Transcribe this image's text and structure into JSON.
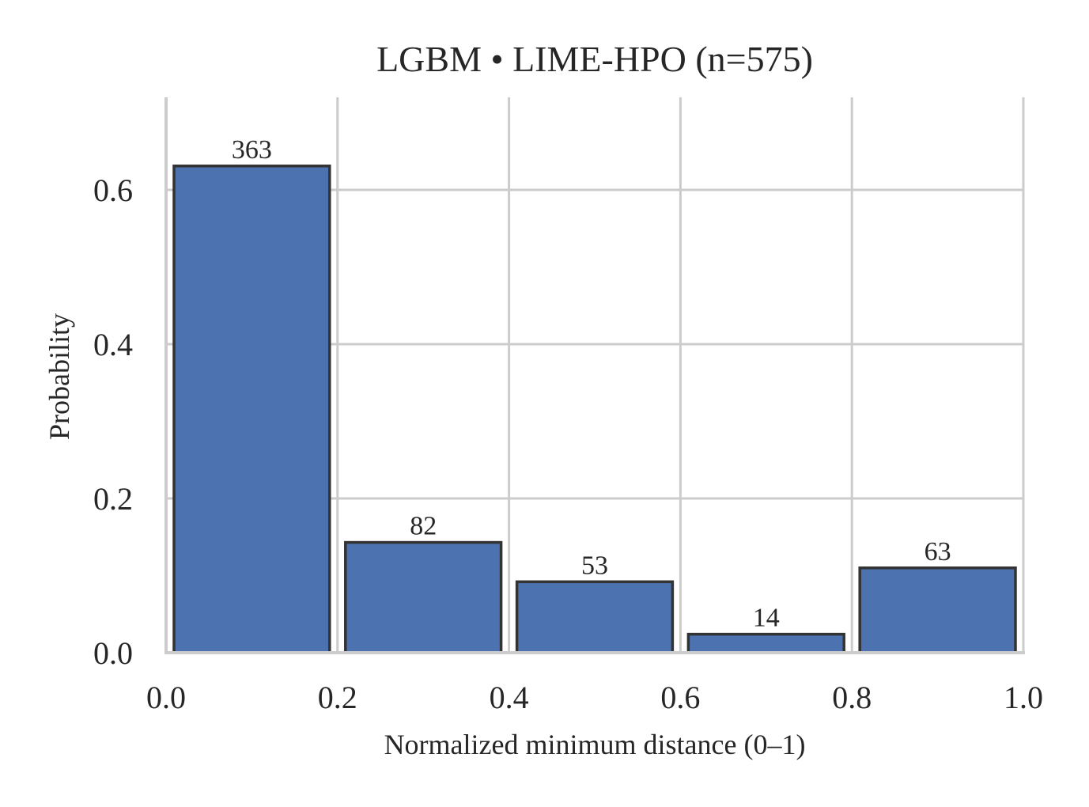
{
  "chart_data": {
    "type": "bar",
    "title": "LGBM • LIME-HPO  (n=575)",
    "xlabel": "Normalized minimum distance (0–1)",
    "ylabel": "Probability",
    "xlim": [
      0,
      1
    ],
    "ylim": [
      0,
      0.72
    ],
    "x_ticks": [
      "0.0",
      "0.2",
      "0.4",
      "0.6",
      "0.8",
      "1.0"
    ],
    "y_ticks": [
      "0.0",
      "0.2",
      "0.4",
      "0.6"
    ],
    "bins": [
      {
        "start": 0.0,
        "end": 0.2,
        "value": 0.631,
        "count": "363"
      },
      {
        "start": 0.2,
        "end": 0.4,
        "value": 0.143,
        "count": "82"
      },
      {
        "start": 0.4,
        "end": 0.6,
        "value": 0.092,
        "count": "53"
      },
      {
        "start": 0.6,
        "end": 0.8,
        "value": 0.024,
        "count": "14"
      },
      {
        "start": 0.8,
        "end": 1.0,
        "value": 0.11,
        "count": "63"
      }
    ],
    "bar_color": "#4c72b0",
    "grid": true
  }
}
